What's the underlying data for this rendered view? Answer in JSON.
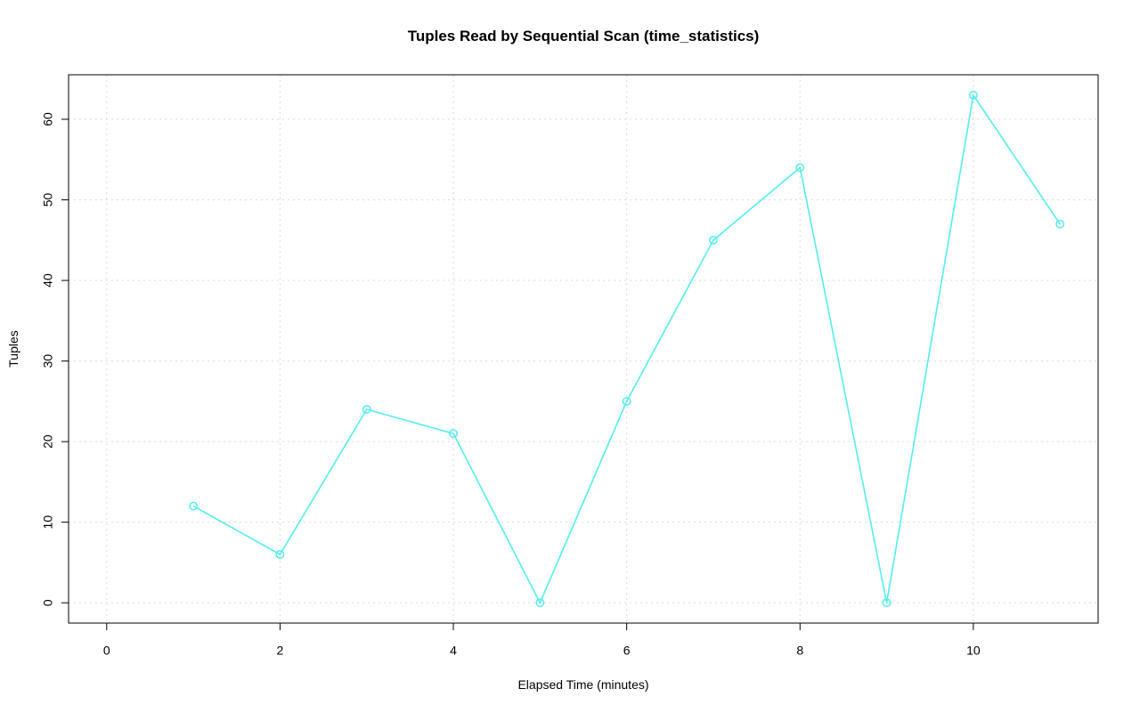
{
  "chart_data": {
    "type": "line",
    "title": "Tuples Read by Sequential Scan (time_statistics)",
    "xlabel": "Elapsed Time (minutes)",
    "ylabel": "Tuples",
    "x": [
      1,
      2,
      3,
      4,
      5,
      6,
      7,
      8,
      9,
      10,
      11
    ],
    "values": [
      12,
      6,
      24,
      21,
      0,
      25,
      45,
      54,
      0,
      63,
      47
    ],
    "x_ticks": [
      0,
      2,
      4,
      6,
      8,
      10
    ],
    "y_ticks": [
      0,
      10,
      20,
      30,
      40,
      50,
      60
    ],
    "xlim": [
      -0.44,
      11.44
    ],
    "ylim": [
      -2.52,
      65.52
    ],
    "line_color": "#54eded",
    "marker": "open-circle",
    "grid": "on",
    "grid_color": "#d9d9d9",
    "legend_position": "none"
  }
}
